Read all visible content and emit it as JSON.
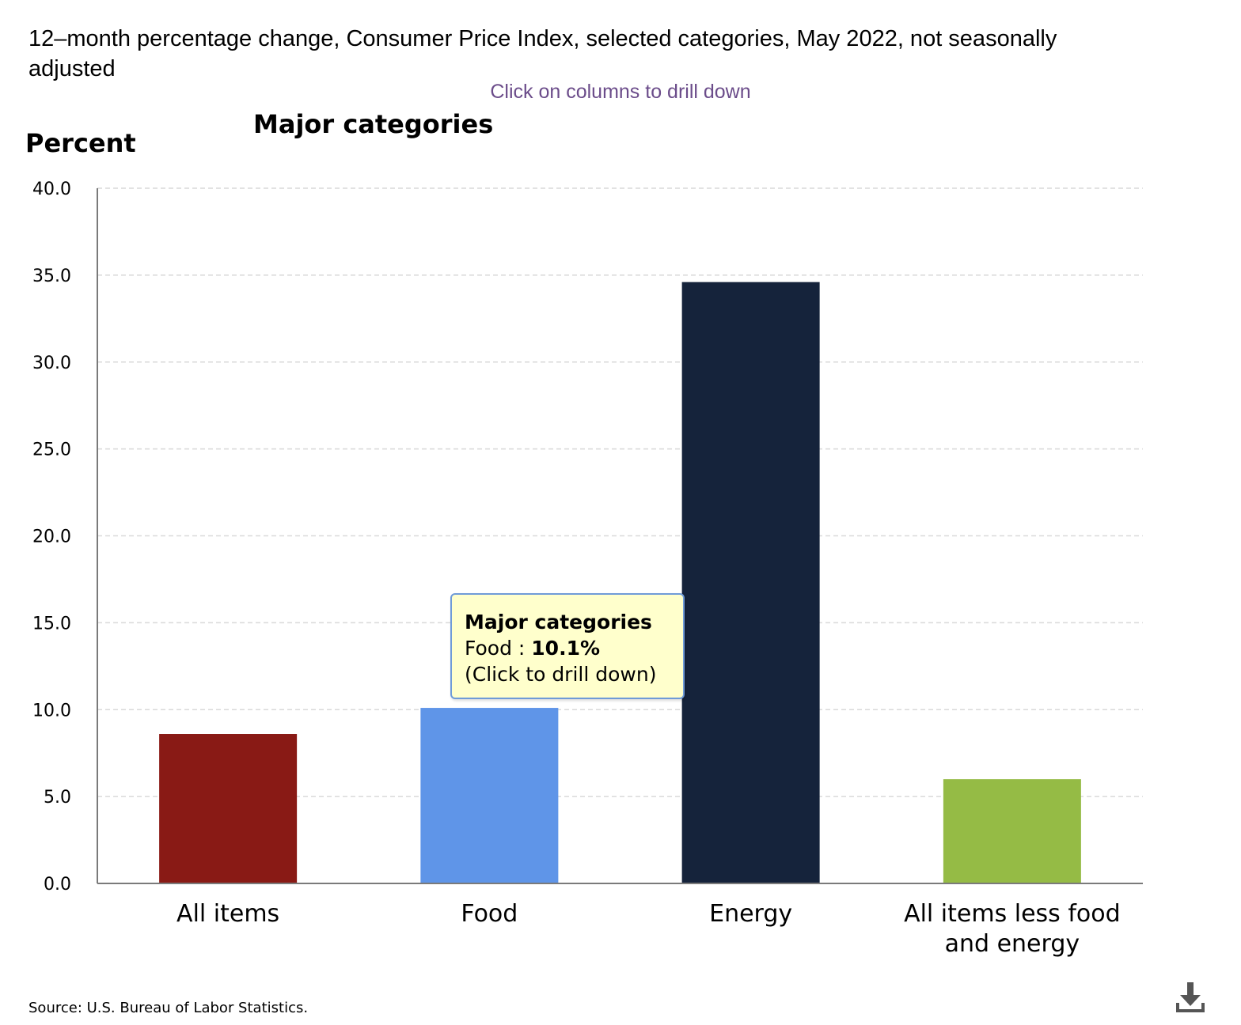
{
  "title": "12–month percentage change, Consumer Price Index, selected categories, May 2022, not seasonally adjusted",
  "drill_hint": "Click on columns to drill down",
  "subtitle": "Major categories",
  "y_axis_title": "Percent",
  "source": "Source: U.S. Bureau of Labor Statistics.",
  "download_icon": "download-icon",
  "tooltip": {
    "heading": "Major categories",
    "category": "Food",
    "separator": " : ",
    "value": "10.1%",
    "hint": "(Click to drill down)"
  },
  "chart_data": {
    "type": "bar",
    "title": "12–month percentage change, Consumer Price Index, selected categories, May 2022, not seasonally adjusted",
    "subtitle": "Major categories",
    "xlabel": "",
    "ylabel": "Percent",
    "ylim": [
      0,
      40
    ],
    "yticks": [
      "0.0",
      "5.0",
      "10.0",
      "15.0",
      "20.0",
      "25.0",
      "30.0",
      "35.0",
      "40.0"
    ],
    "grid": true,
    "categories": [
      [
        "All items"
      ],
      [
        "Food"
      ],
      [
        "Energy"
      ],
      [
        "All items less food",
        "and energy"
      ]
    ],
    "values": [
      8.6,
      10.1,
      34.6,
      6.0
    ],
    "colors": [
      "#891a15",
      "#5f95e8",
      "#15233b",
      "#95bb45"
    ]
  }
}
